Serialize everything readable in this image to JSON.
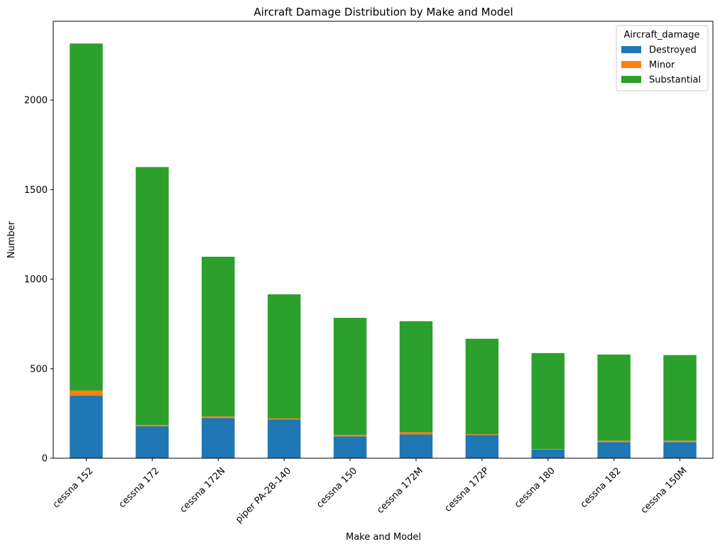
{
  "chart_data": {
    "type": "bar",
    "stacked": true,
    "title": "Aircraft Damage Distribution by Make and Model",
    "xlabel": "Make and Model",
    "ylabel": "Number",
    "ylim": [
      0,
      2440
    ],
    "yticks": [
      0,
      500,
      1000,
      1500,
      2000
    ],
    "categories": [
      "cessna 152",
      "cessna 172",
      "cessna 172N",
      "piper PA-28-140",
      "cessna 150",
      "cessna 172M",
      "cessna 172P",
      "cessna 180",
      "cessna 182",
      "cessna 150M"
    ],
    "series": [
      {
        "name": "Destroyed",
        "color": "#1f77b4",
        "values": [
          350,
          178,
          224,
          216,
          122,
          133,
          130,
          48,
          90,
          90
        ]
      },
      {
        "name": "Minor",
        "color": "#ff7f0e",
        "values": [
          28,
          8,
          9,
          6,
          8,
          12,
          4,
          2,
          8,
          8
        ]
      },
      {
        "name": "Substantial",
        "color": "#2ca02c",
        "values": [
          1938,
          1440,
          892,
          693,
          654,
          620,
          533,
          537,
          481,
          478
        ]
      }
    ],
    "legend": {
      "title": "Aircraft_damage",
      "position": "top-right"
    },
    "grid": false
  }
}
